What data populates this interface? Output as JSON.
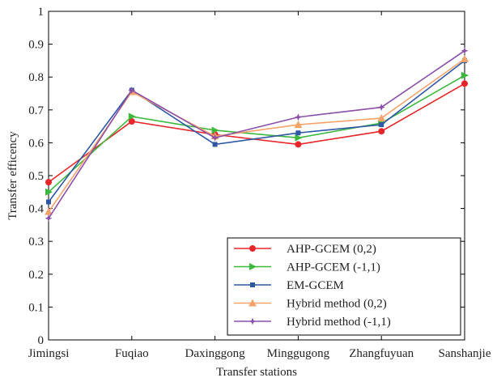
{
  "chart_data": {
    "type": "line",
    "title": "",
    "xlabel": "Transfer stations",
    "ylabel": "Transfer efficency",
    "categories": [
      "Jimingsi",
      "Fuqiao",
      "Daxinggong",
      "Minggugong",
      "Zhangfuyuan",
      "Sanshanjie"
    ],
    "ylim": [
      0,
      1
    ],
    "yticks": [
      "0",
      "0.1",
      "0.2",
      "0.3",
      "0.4",
      "0.5",
      "0.6",
      "0.7",
      "0.8",
      "0.9",
      "1"
    ],
    "grid": false,
    "legend_position": "bottom-right",
    "series": [
      {
        "name": "AHP-GCEM (0,2)",
        "color": "#e8262a",
        "marker": "circle",
        "values": [
          0.48,
          0.665,
          0.625,
          0.595,
          0.635,
          0.78
        ]
      },
      {
        "name": "AHP-GCEM (-1,1)",
        "color": "#3cb93c",
        "marker": "triangle-right",
        "values": [
          0.45,
          0.68,
          0.638,
          0.615,
          0.66,
          0.805
        ]
      },
      {
        "name": "EM-GCEM",
        "color": "#2e58a6",
        "marker": "square",
        "values": [
          0.42,
          0.76,
          0.595,
          0.63,
          0.655,
          0.85
        ]
      },
      {
        "name": "Hybrid method (0,2)",
        "color": "#f5a36b",
        "marker": "triangle-up",
        "values": [
          0.39,
          0.755,
          0.62,
          0.655,
          0.675,
          0.855
        ]
      },
      {
        "name": "Hybrid method (-1,1)",
        "color": "#8b4fa8",
        "marker": "star",
        "values": [
          0.37,
          0.76,
          0.615,
          0.678,
          0.708,
          0.88
        ]
      }
    ]
  }
}
